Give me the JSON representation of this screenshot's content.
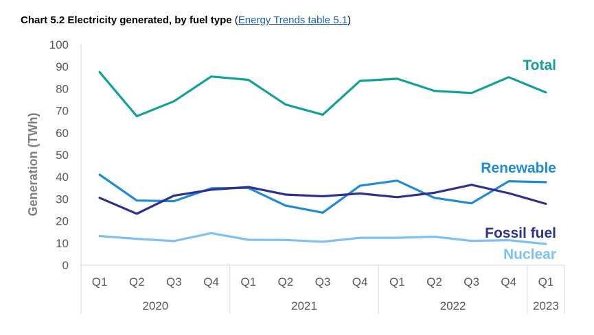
{
  "title": {
    "bold": "Chart 5.2 Electricity generated, by fuel type",
    "paren_open": "(",
    "link": "Energy Trends table 5.1",
    "paren_close": ")"
  },
  "chart_data": {
    "type": "line",
    "ylabel": "Generation (TWh)",
    "ylim": [
      0,
      100
    ],
    "yticks": [
      0,
      10,
      20,
      30,
      40,
      50,
      60,
      70,
      80,
      90,
      100
    ],
    "categories": [
      "Q1",
      "Q2",
      "Q3",
      "Q4",
      "Q1",
      "Q2",
      "Q3",
      "Q4",
      "Q1",
      "Q2",
      "Q3",
      "Q4",
      "Q1"
    ],
    "years": [
      {
        "label": "2020",
        "count": 4
      },
      {
        "label": "2021",
        "count": 4
      },
      {
        "label": "2022",
        "count": 4
      },
      {
        "label": "2023",
        "count": 1
      }
    ],
    "series": [
      {
        "name": "Total",
        "color": "#12a09a",
        "values": [
          87.5,
          67.5,
          74.3,
          85.5,
          84.0,
          72.8,
          68.2,
          83.5,
          84.5,
          79.0,
          78.0,
          85.2,
          78.3
        ]
      },
      {
        "name": "Renewable",
        "color": "#1f8ad6",
        "values": [
          41.0,
          29.3,
          29.0,
          34.8,
          35.0,
          27.0,
          23.8,
          36.0,
          38.3,
          30.5,
          28.0,
          38.0,
          37.6
        ]
      },
      {
        "name": "Fossil fuel",
        "color": "#2e3192",
        "values": [
          30.5,
          23.3,
          31.5,
          34.2,
          35.4,
          32.0,
          31.2,
          32.5,
          30.8,
          32.8,
          36.4,
          32.6,
          27.8
        ]
      },
      {
        "name": "Nuclear",
        "color": "#7cc0f5",
        "values": [
          13.2,
          11.9,
          10.9,
          14.5,
          11.5,
          11.4,
          10.6,
          12.4,
          12.4,
          12.9,
          11.0,
          11.3,
          9.6
        ]
      }
    ]
  }
}
